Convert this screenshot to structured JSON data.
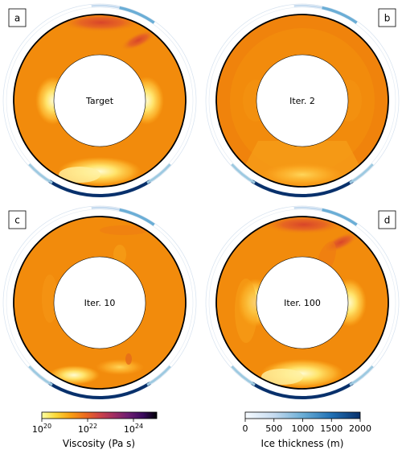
{
  "panels": [
    {
      "letter": "a",
      "caption": "Target"
    },
    {
      "letter": "b",
      "caption": "Iter. 2"
    },
    {
      "letter": "c",
      "caption": "Iter. 10"
    },
    {
      "letter": "d",
      "caption": "Iter. 100"
    }
  ],
  "viscosity_colorbar": {
    "label": "Viscosity (Pa s)",
    "ticks": [
      {
        "base": "10",
        "exp": "20"
      },
      {
        "base": "10",
        "exp": "22"
      },
      {
        "base": "10",
        "exp": "24"
      }
    ]
  },
  "ice_colorbar": {
    "label": "Ice thickness (m)",
    "ticks": [
      "0",
      "500",
      "1000",
      "1500",
      "2000"
    ]
  },
  "colors": {
    "mantle_orange": "#f28b0c",
    "mantle_yellow": "#ffd54a",
    "hot_pale": "#fff4b0",
    "cold_red": "#d8452a",
    "ice_dark": "#08306b",
    "ice_light": "#c6dbef"
  }
}
